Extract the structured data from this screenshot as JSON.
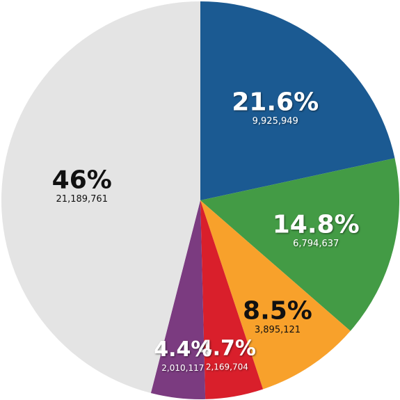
{
  "chart_data": {
    "type": "pie",
    "values": [
      21.6,
      14.8,
      8.5,
      4.7,
      4.4,
      46
    ],
    "value_labels": [
      "21.6%",
      "14.8%",
      "8.5%",
      "4.7%",
      "4.4%",
      "46%"
    ],
    "counts": [
      9925949,
      6794637,
      3895121,
      2169704,
      2010117,
      21189761
    ],
    "count_labels": [
      "9,925,949",
      "6,794,637",
      "3,895,121",
      "2,169,704",
      "2,010,117",
      "21,189,761"
    ],
    "colors": [
      "#1b5a92",
      "#439b45",
      "#f8a12b",
      "#d91f2b",
      "#7b3b80",
      "#e4e4e4"
    ]
  }
}
